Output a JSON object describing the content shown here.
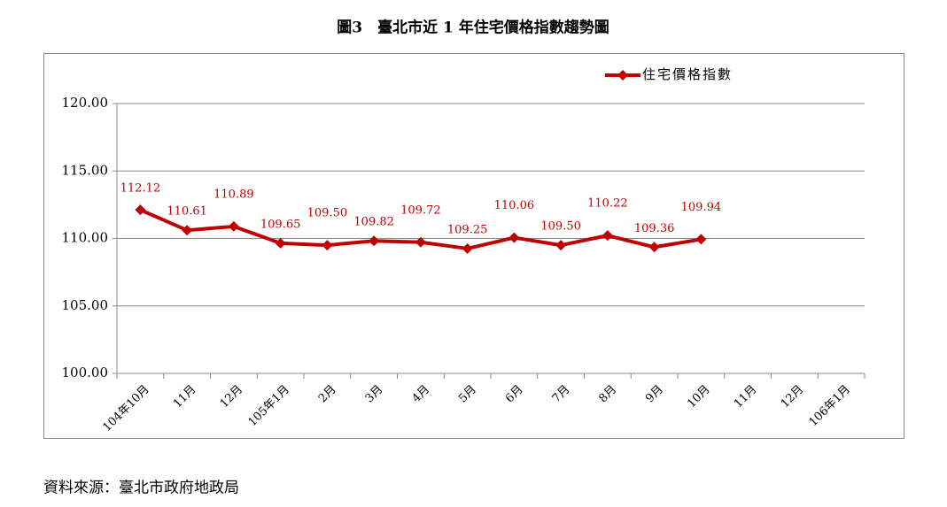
{
  "chart_data": {
    "type": "line",
    "title": "圖3　臺北市近 1 年住宅價格指數趨勢圖",
    "source": "資料來源：臺北市政府地政局",
    "categories": [
      "104年10月",
      "11月",
      "12月",
      "105年1月",
      "2月",
      "3月",
      "4月",
      "5月",
      "6月",
      "7月",
      "8月",
      "9月",
      "10月",
      "11月",
      "12月",
      "106年1月"
    ],
    "series": [
      {
        "name": "住宅價格指數",
        "color": "#c00000",
        "values": [
          112.12,
          110.61,
          110.89,
          109.65,
          109.5,
          109.82,
          109.72,
          109.25,
          110.06,
          109.5,
          110.22,
          109.36,
          109.94,
          null,
          null,
          null
        ],
        "value_labels": [
          "112.12",
          "110.61",
          "110.89",
          "109.65",
          "109.50",
          "109.82",
          "109.72",
          "109.25",
          "110.06",
          "109.50",
          "110.22",
          "109.36",
          "109.94",
          null,
          null,
          null
        ]
      }
    ],
    "ylim": [
      100,
      120
    ],
    "yticks": [
      {
        "value": 100,
        "label": "100.00"
      },
      {
        "value": 105,
        "label": "105.00"
      },
      {
        "value": 110,
        "label": "110.00"
      },
      {
        "value": 115,
        "label": "115.00"
      },
      {
        "value": 120,
        "label": "120.00"
      }
    ],
    "grid": true,
    "legend": "top-right"
  }
}
